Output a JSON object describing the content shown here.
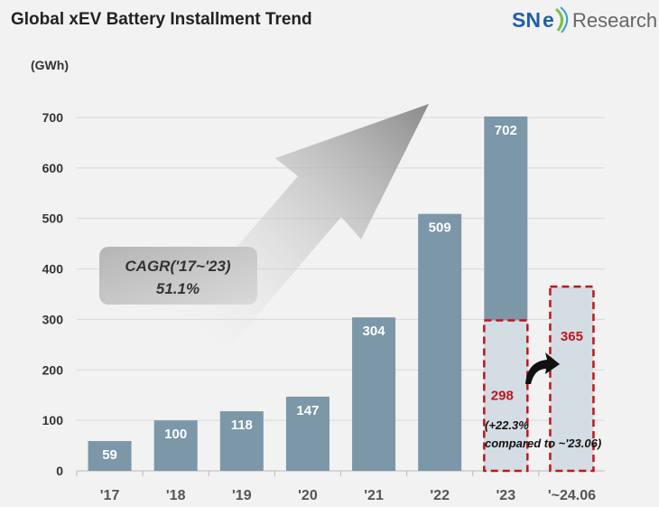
{
  "chart_data": {
    "type": "bar",
    "title": "Global xEV Battery Installment Trend",
    "ylabel": "(GWh)",
    "ylim": [
      0,
      700
    ],
    "yticks": [
      0,
      100,
      200,
      300,
      400,
      500,
      600,
      700
    ],
    "categories": [
      "'17",
      "'18",
      "'19",
      "'20",
      "'21",
      "'22",
      "'23",
      "'~24.06"
    ],
    "values": [
      59,
      100,
      118,
      147,
      304,
      509,
      702,
      365
    ],
    "highlight": {
      "category": "'23",
      "value": 298
    },
    "annotations": {
      "cagr_line1": "CAGR('17~'23)",
      "cagr_line2": "51.1%",
      "growth_line1": "(+22.3%",
      "growth_line2": "compared to ~'23.06)"
    },
    "grid": true,
    "colors": {
      "bar": "#7b97a8",
      "partial": "#d3dde3",
      "dashed": "#c0151c",
      "label_red": "#c0151c"
    }
  },
  "brand": {
    "logo": "SNE Research"
  }
}
